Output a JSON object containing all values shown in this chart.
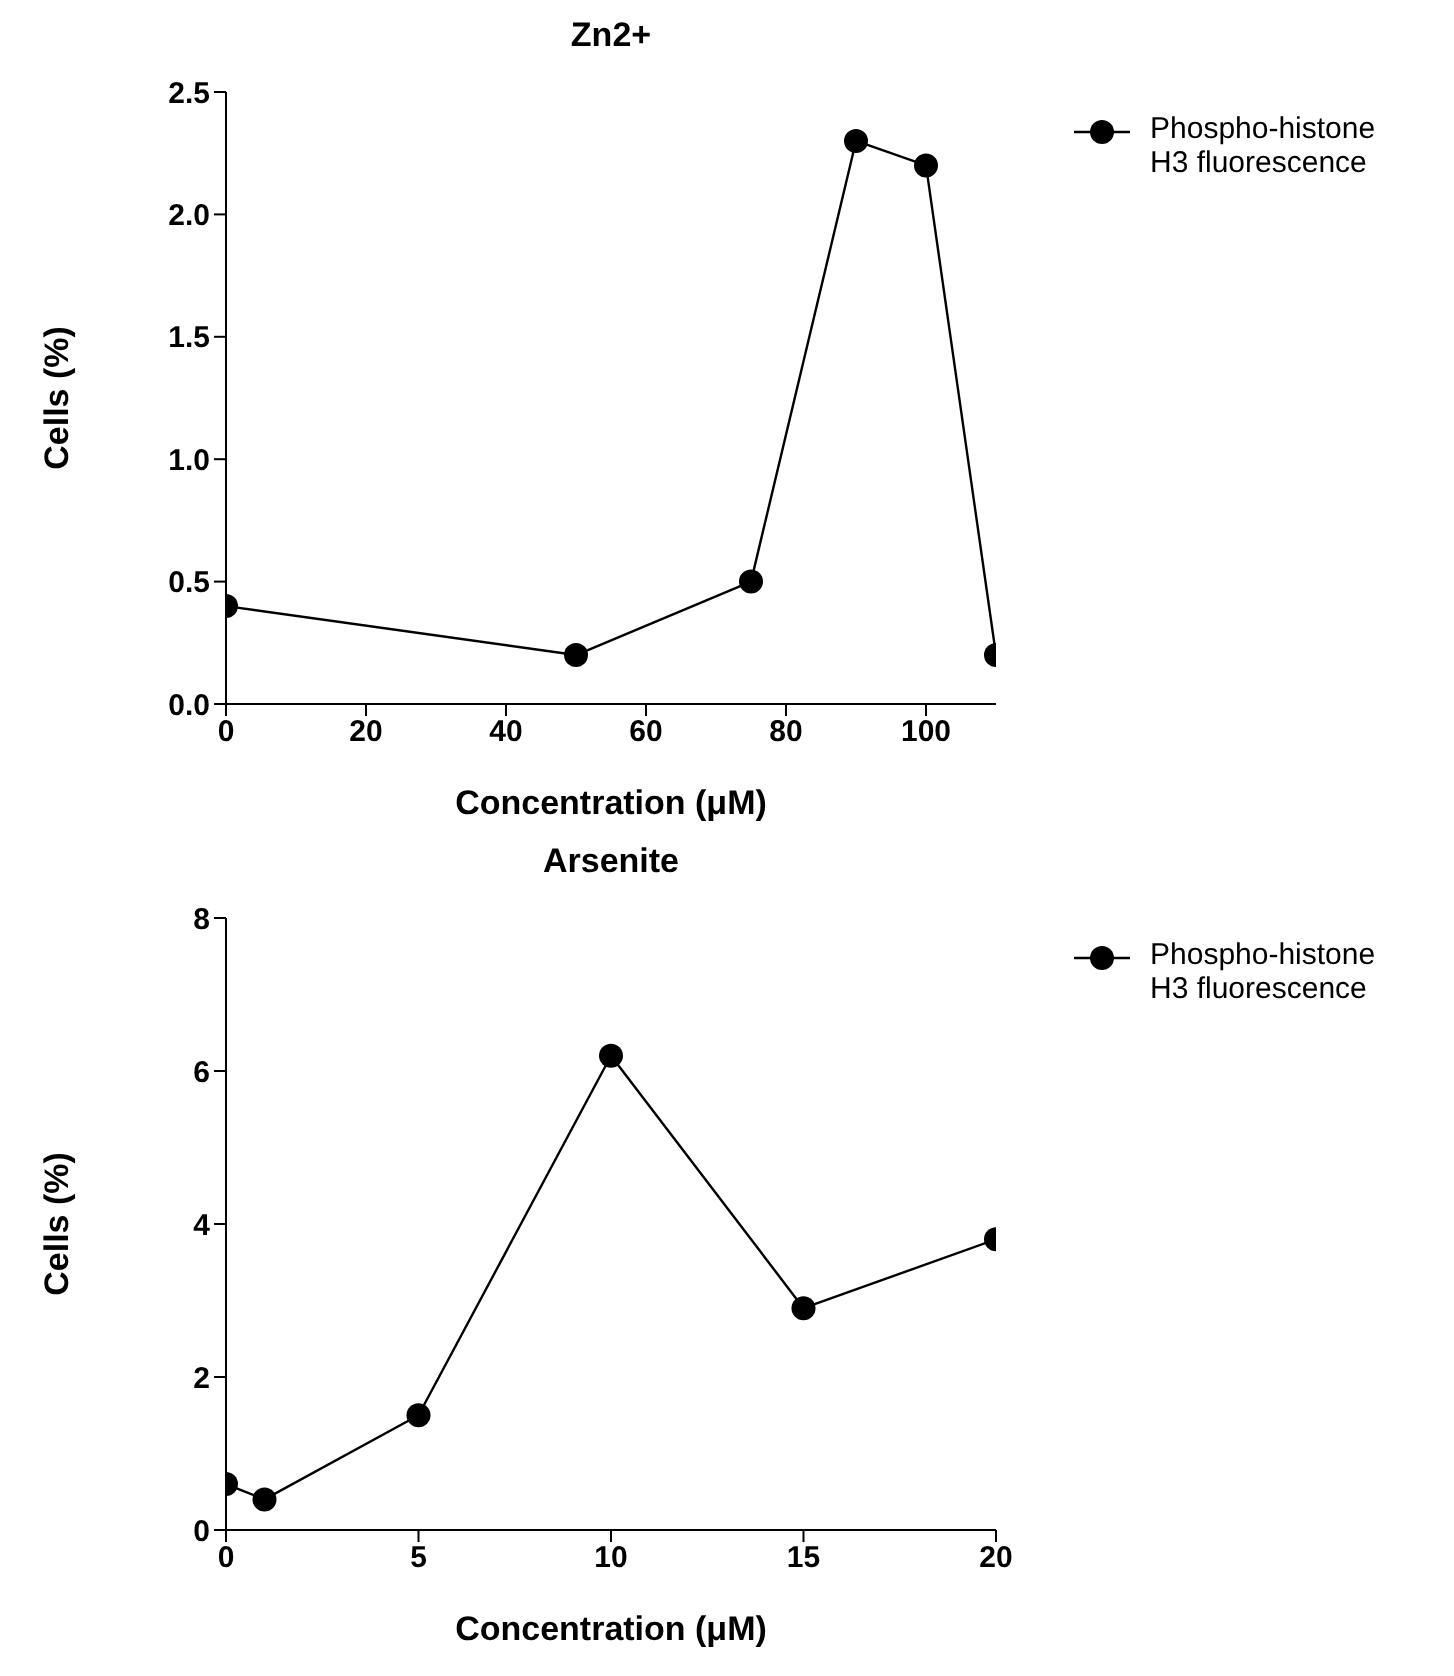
{
  "chart_data": [
    {
      "type": "line",
      "title": "Zn2+",
      "xlabel": "Concentration (μM)",
      "ylabel": "Cells (%)",
      "x": [
        0,
        50,
        75,
        90,
        100,
        110
      ],
      "series": [
        {
          "name": "Phospho-histone H3 fluorescence",
          "color": "#000000",
          "values": [
            0.4,
            0.2,
            0.5,
            2.3,
            2.2,
            0.2
          ]
        }
      ],
      "xlim": [
        0,
        110
      ],
      "xticks": [
        0,
        20,
        40,
        60,
        80,
        100
      ],
      "ylim": [
        0,
        2.5
      ],
      "yticks": [
        {
          "value": 0,
          "label": "0.0"
        },
        {
          "value": 0.5,
          "label": "0.5"
        },
        {
          "value": 1,
          "label": "1.0"
        },
        {
          "value": 1.5,
          "label": "1.5"
        },
        {
          "value": 2,
          "label": "2.0"
        },
        {
          "value": 2.5,
          "label": "2.5"
        }
      ],
      "grid": false,
      "legend": "top right",
      "marker": "circle",
      "line_style": "solid"
    },
    {
      "type": "line",
      "title": "Arsenite",
      "xlabel": "Concentration (μM)",
      "ylabel": "Cells (%)",
      "x": [
        0,
        1,
        5,
        10,
        15,
        20
      ],
      "series": [
        {
          "name": "Phospho-histone H3 fluorescence",
          "color": "#000000",
          "values": [
            0.6,
            0.4,
            1.5,
            6.2,
            2.9,
            3.8
          ]
        }
      ],
      "xlim": [
        0,
        20
      ],
      "xticks": [
        0,
        5,
        10,
        15,
        20
      ],
      "ylim": [
        0,
        8
      ],
      "yticks": [
        0,
        2,
        4,
        6,
        8
      ],
      "grid": false,
      "legend": "top right",
      "marker": "circle",
      "line_style": "solid"
    }
  ]
}
